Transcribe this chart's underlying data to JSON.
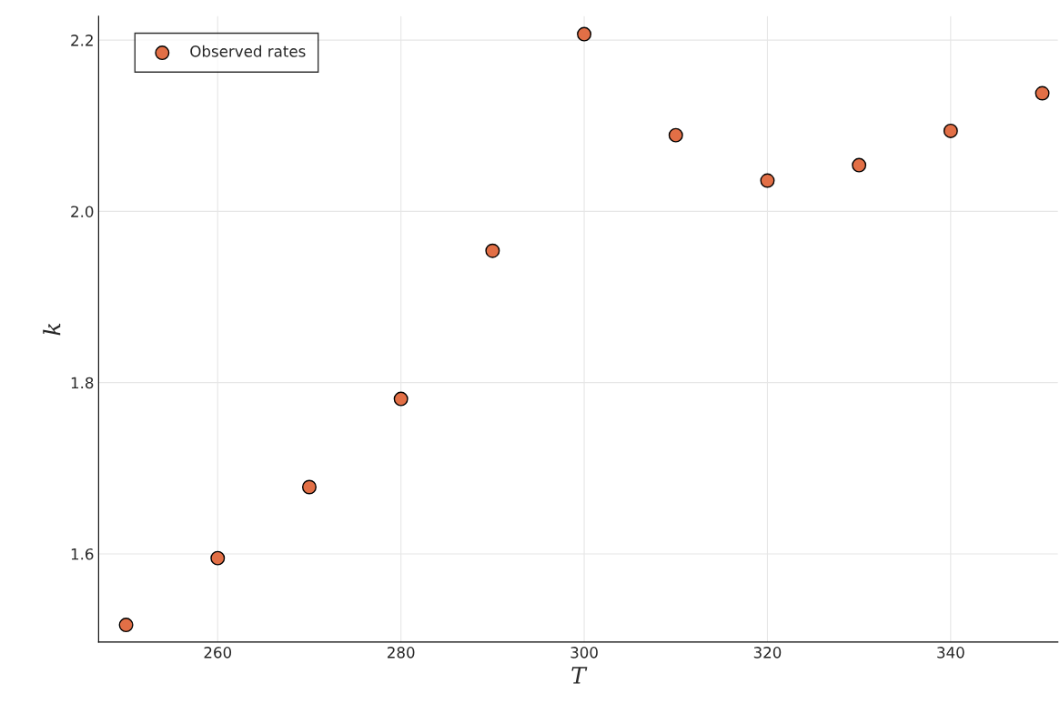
{
  "chart_data": {
    "type": "scatter",
    "xlabel": "T",
    "ylabel": "k",
    "x": [
      250,
      260,
      270,
      280,
      290,
      300,
      310,
      320,
      330,
      340,
      350
    ],
    "series": [
      {
        "name": "Observed rates",
        "color": "#e26f46",
        "values": [
          1.517,
          1.595,
          1.678,
          1.781,
          1.954,
          2.207,
          2.089,
          2.036,
          2.054,
          2.094,
          2.138
        ]
      }
    ],
    "xlim": [
      247.0,
      351.7
    ],
    "ylim": [
      1.497,
      2.228
    ],
    "xticks": [
      260,
      280,
      300,
      320,
      340
    ],
    "yticks": [
      1.6,
      1.8,
      {
        "value": 2.0,
        "label": "2.0"
      },
      2.2
    ],
    "grid": true,
    "legend": "top left",
    "marker": "circle"
  }
}
